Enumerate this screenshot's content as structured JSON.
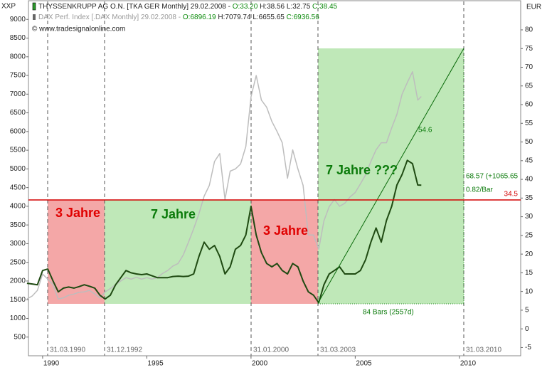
{
  "chart_data": {
    "type": "line",
    "left_axis_label": "XXP",
    "right_axis_label": "EUR",
    "copyright": "© www.tradesignalonline.com",
    "xlim": [
      1989.32,
      2012.94
    ],
    "xticks": [
      1990,
      1995,
      2000,
      2005,
      2010
    ],
    "ylim": [
      0,
      9500
    ],
    "yticks": [
      500,
      1000,
      1500,
      2000,
      2500,
      3000,
      3500,
      4000,
      4500,
      5000,
      5500,
      6000,
      6500,
      7000,
      7500,
      8000,
      8500,
      9000
    ],
    "y2lim": [
      -7.2,
      87.8
    ],
    "y2ticks": [
      -5,
      0,
      5,
      10,
      15,
      20,
      25,
      30,
      35,
      40,
      45,
      50,
      55,
      60,
      65,
      70,
      75,
      80
    ],
    "x": [
      1989.25,
      1989.5,
      1989.75,
      1990.0,
      1990.25,
      1990.5,
      1990.75,
      1991.0,
      1991.25,
      1991.5,
      1991.75,
      1992.0,
      1992.25,
      1992.5,
      1992.75,
      1993.0,
      1993.25,
      1993.5,
      1993.75,
      1994.0,
      1994.25,
      1994.5,
      1994.75,
      1995.0,
      1995.25,
      1995.5,
      1995.75,
      1996.0,
      1996.25,
      1996.5,
      1996.75,
      1997.0,
      1997.25,
      1997.5,
      1997.75,
      1998.0,
      1998.25,
      1998.5,
      1998.75,
      1999.0,
      1999.25,
      1999.5,
      1999.75,
      2000.0,
      2000.25,
      2000.5,
      2000.75,
      2001.0,
      2001.25,
      2001.5,
      2001.75,
      2002.0,
      2002.25,
      2002.5,
      2002.75,
      2003.0,
      2003.25,
      2003.5,
      2003.75,
      2004.0,
      2004.25,
      2004.5,
      2004.75,
      2005.0,
      2005.25,
      2005.5,
      2005.75,
      2006.0,
      2006.25,
      2006.5,
      2006.75,
      2007.0,
      2007.25,
      2007.5,
      2007.75,
      2008.0,
      2008.17
    ],
    "series": [
      {
        "name": "DAX Perf. Index [.DAX  Monthly] 29.02.2008 -",
        "color": "#bdbdbd",
        "axis": "y",
        "quote": [
          "O:6896.19",
          "H:7079.74",
          "L:6655.65",
          "C:6936.56"
        ],
        "values": [
          1520,
          1600,
          1750,
          2185,
          2050,
          1900,
          1520,
          1550,
          1620,
          1650,
          1700,
          1710,
          1750,
          1650,
          1550,
          1710,
          1800,
          1900,
          2000,
          2090,
          2050,
          2100,
          2050,
          2090,
          2050,
          2090,
          2200,
          2280,
          2400,
          2470,
          2700,
          3040,
          3400,
          3800,
          4270,
          4560,
          5200,
          5410,
          4180,
          4940,
          5000,
          5130,
          5600,
          6930,
          7500,
          6840,
          6650,
          6270,
          6000,
          5700,
          4750,
          5510,
          5000,
          4560,
          3230,
          3230,
          2850,
          3610,
          3990,
          4180,
          4000,
          4080,
          4250,
          4370,
          4600,
          4840,
          5200,
          5510,
          5700,
          5700,
          6100,
          6460,
          7000,
          7310,
          7600,
          6840,
          6937
        ]
      },
      {
        "name": "THYSSENKRUPP AG O.N. [TKA GER  Monthly] 29.02.2008 -",
        "color": "#1f4a12",
        "axis": "y2",
        "quote": [
          "O:33.20",
          "H:38.56",
          "L:32.75",
          "C:38.45"
        ],
        "values": [
          12.2,
          12.0,
          11.8,
          15.6,
          16.0,
          12.8,
          9.9,
          10.9,
          11.2,
          10.9,
          11.3,
          11.8,
          11.4,
          10.9,
          9.0,
          8.0,
          9.0,
          11.8,
          13.7,
          15.6,
          15.0,
          14.7,
          14.5,
          14.7,
          14.2,
          13.7,
          13.7,
          13.7,
          14.0,
          14.1,
          14.0,
          14.1,
          14.7,
          19.4,
          23.2,
          21.3,
          22.3,
          19.4,
          14.7,
          16.6,
          21.3,
          22.3,
          25.1,
          32.8,
          25.1,
          20.4,
          17.5,
          16.6,
          17.5,
          15.6,
          14.7,
          17.5,
          16.6,
          12.8,
          9.9,
          9.0,
          7.0,
          11.8,
          14.7,
          15.6,
          16.6,
          14.7,
          14.7,
          14.7,
          15.6,
          18.5,
          23.2,
          27.0,
          23.2,
          29.0,
          32.8,
          38.5,
          41.3,
          45.1,
          44.2,
          38.5,
          38.45
        ]
      }
    ],
    "level": 34.5,
    "level_color": "#d40000",
    "dates": [
      "31.03.1990",
      "31.12.1992",
      "31.01.2000",
      "31.03.2003",
      "31.03.2010"
    ],
    "annotations": [
      "3 Jahre",
      "7 Jahre",
      "3 Jahre",
      "7 Jahre ???",
      "54.6",
      "68.57 (+1065.65",
      "0.82/Bar",
      "84 Bars (2557d)"
    ]
  }
}
